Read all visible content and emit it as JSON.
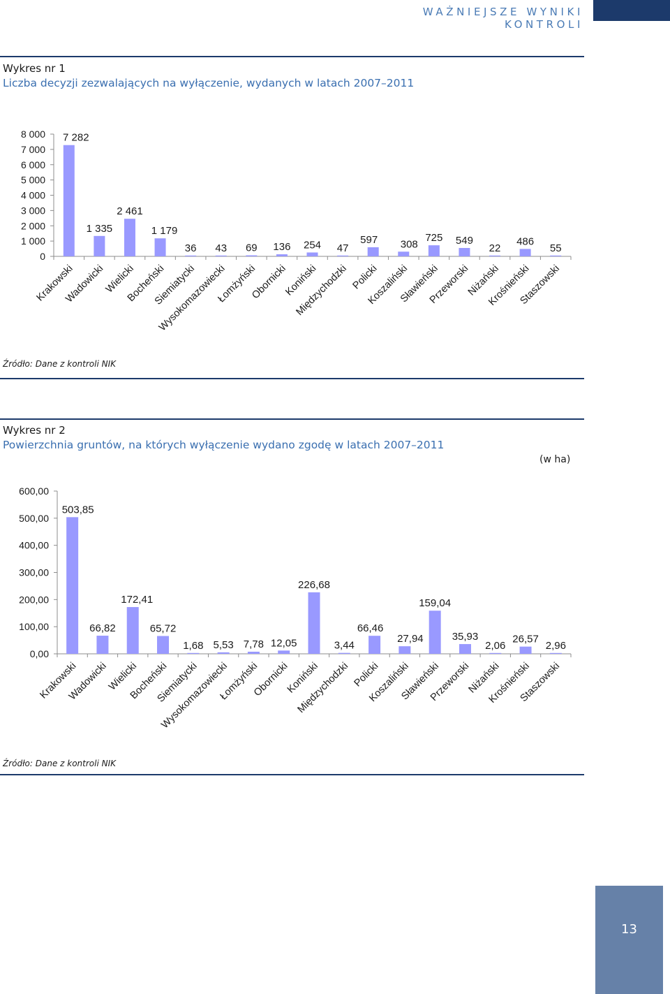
{
  "header": {
    "running_head": "WAŻNIEJSZE WYNIKI KONTROLI",
    "page_number": "13"
  },
  "colors": {
    "bar": "#9999ff",
    "brand": "#1c3a6b",
    "accent": "#3a6fb0",
    "page_box": "#6681a8"
  },
  "figures": [
    {
      "label": "Wykres nr 1",
      "title": "Liczba decyzji zezwalających na wyłączenie, wydanych w latach 2007–2011",
      "unit": "",
      "source": "Źródło: Dane z kontroli NIK"
    },
    {
      "label": "Wykres nr 2",
      "title": "Powierzchnia gruntów, na których wyłączenie wydano zgodę w latach 2007–2011",
      "unit": "(w ha)",
      "source": "Źródło: Dane z kontroli NIK"
    }
  ],
  "chart_data": [
    {
      "type": "bar",
      "categories": [
        "Krakowski",
        "Wadowicki",
        "Wielicki",
        "Bocheński",
        "Siemiatycki",
        "Wysokomazowiecki",
        "Łomżyński",
        "Obornicki",
        "Koniński",
        "Międzychodzki",
        "Policki",
        "Koszaliński",
        "Sławieński",
        "Przeworski",
        "Niżański",
        "Krośnieński",
        "Staszowski"
      ],
      "values": [
        7282,
        1335,
        2461,
        1179,
        36,
        43,
        69,
        136,
        254,
        47,
        597,
        308,
        725,
        549,
        22,
        486,
        55
      ],
      "value_labels": [
        "7 282",
        "1 335",
        "2 461",
        "1 179",
        "36",
        "43",
        "69",
        "136",
        "254",
        "47",
        "597",
        "308",
        "725",
        "549",
        "22",
        "486",
        "55"
      ],
      "y_ticks": [
        "0",
        "1 000",
        "2 000",
        "3 000",
        "4 000",
        "5 000",
        "6 000",
        "7 000",
        "8 000"
      ],
      "ylim": [
        0,
        8000
      ],
      "grid": false,
      "legend": "none"
    },
    {
      "type": "bar",
      "categories": [
        "Krakowski",
        "Wadowicki",
        "Wielicki",
        "Bocheński",
        "Siemiatycki",
        "Wysokomazowiecki",
        "Łomżyński",
        "Obornicki",
        "Koniński",
        "Międzychodzki",
        "Policki",
        "Koszaliński",
        "Sławieński",
        "Przeworski",
        "Niżański",
        "Krośnieński",
        "Staszowski"
      ],
      "values": [
        503.85,
        66.82,
        172.41,
        65.72,
        1.68,
        5.53,
        7.78,
        12.05,
        226.68,
        3.44,
        66.46,
        27.94,
        159.04,
        35.93,
        2.06,
        26.57,
        2.96
      ],
      "value_labels": [
        "503,85",
        "66,82",
        "172,41",
        "65,72",
        "1,68",
        "5,53",
        "7,78",
        "12,05",
        "226,68",
        "3,44",
        "66,46",
        "27,94",
        "159,04",
        "35,93",
        "2,06",
        "26,57",
        "2,96"
      ],
      "y_ticks": [
        "0,00",
        "100,00",
        "200,00",
        "300,00",
        "400,00",
        "500,00",
        "600,00"
      ],
      "ylim": [
        0,
        600
      ],
      "grid": false,
      "legend": "none"
    }
  ]
}
